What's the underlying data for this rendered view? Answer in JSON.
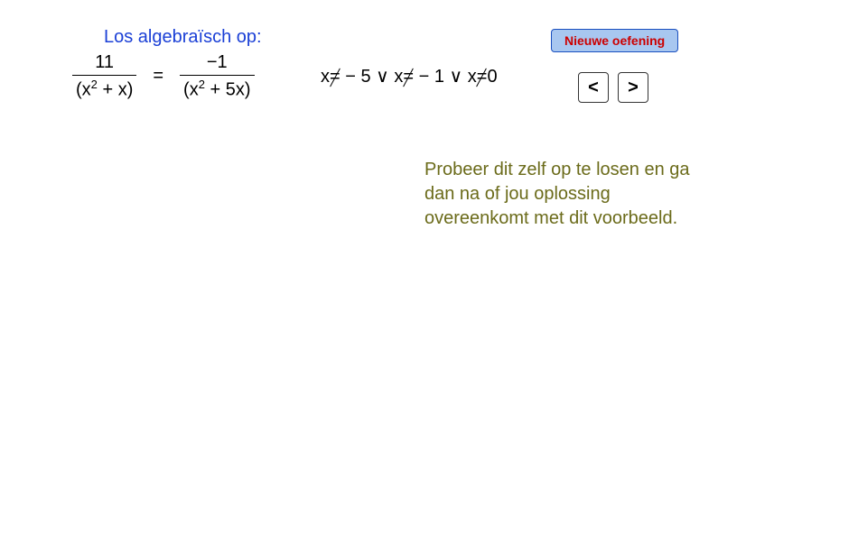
{
  "colors": {
    "title": "#1a3fd6",
    "button_bg": "#a8c7f0",
    "button_border": "#1a4fbf",
    "button_text": "#cc0000",
    "instruction": "#6b6b1a",
    "text": "#000000",
    "background": "#ffffff"
  },
  "typography": {
    "body_fontsize": 20,
    "button_fontsize": 14
  },
  "title": "Los algebraïsch op:",
  "equation": {
    "left_num": "11",
    "left_den_pre": "(x",
    "left_den_post": " + x)",
    "sign": "=",
    "right_num": "−1",
    "right_den_pre": "(x",
    "right_den_post": " + 5x)",
    "exponent": "2"
  },
  "conditions": {
    "c1_pre": "x",
    "c1_post": " − 5 ",
    "or": "∨",
    "c2_pre": " x",
    "c2_post": " − 1 ",
    "c3_pre": " x",
    "c3_post": "0",
    "eq_glyph": "="
  },
  "buttons": {
    "new_exercise": "Nieuwe oefening",
    "prev": "<",
    "next": ">"
  },
  "instruction": "Probeer dit zelf op te losen en ga dan na of jou oplossing overeenkomt met dit voorbeeld."
}
